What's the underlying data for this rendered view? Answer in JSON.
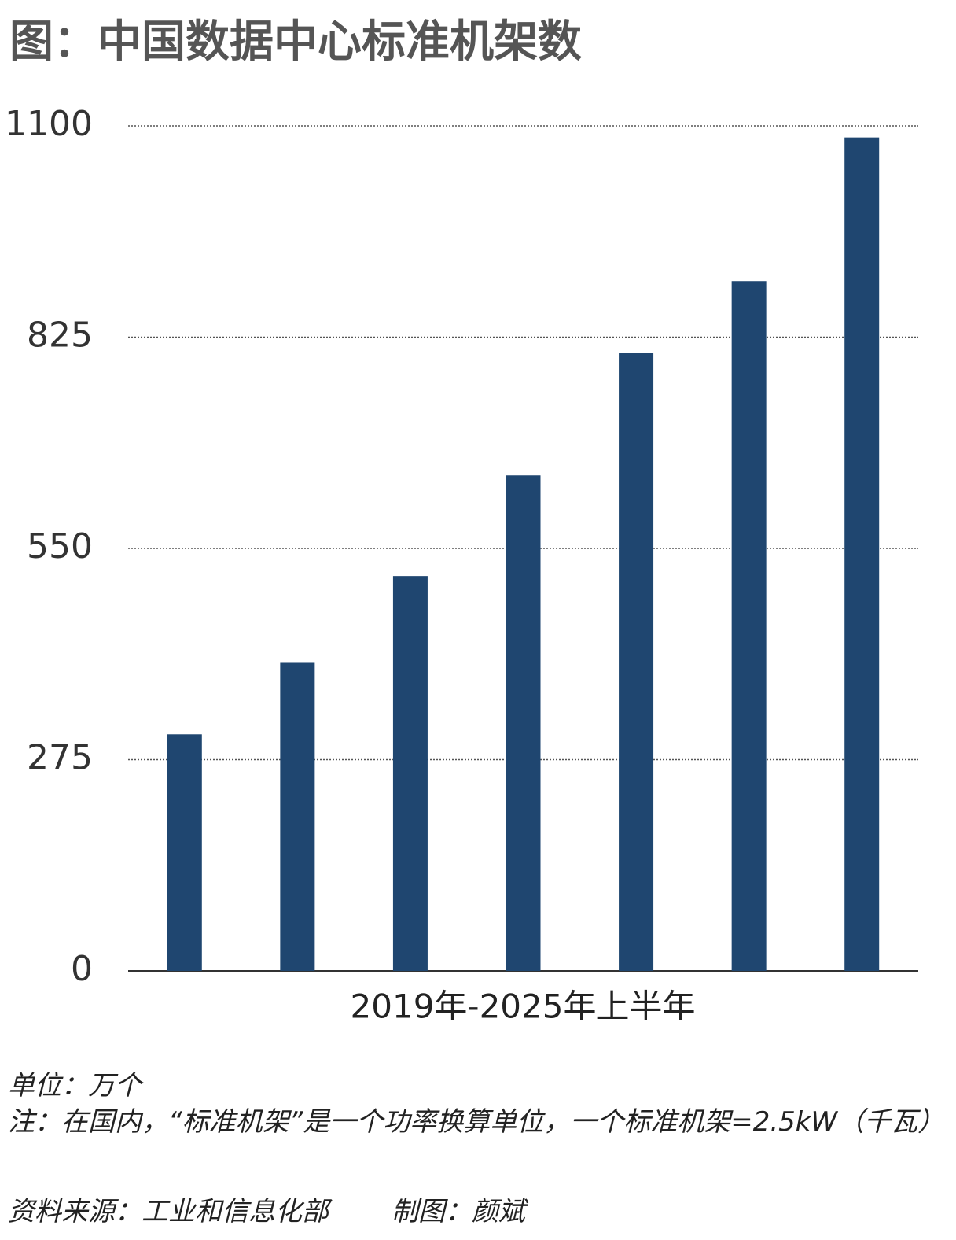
{
  "chart_data": {
    "type": "bar",
    "title": "图：中国数据中心标准机架数",
    "xlabel": "2019年-2025年上半年",
    "categories": [
      null,
      null,
      null,
      null,
      null,
      null,
      null
    ],
    "values": [
      308,
      401,
      514,
      645,
      804,
      898,
      1085
    ],
    "color": "#1f4670",
    "ylim": [
      0,
      1100
    ],
    "yticks": [
      0,
      275,
      550,
      825,
      1100
    ],
    "grid": true,
    "unit": "单位：万个",
    "note": "注：在国内，“标准机架”是一个功率换算单位，一个标准机架=2.5kW（千瓦）",
    "source": "资料来源：工业和信息化部",
    "credit": "制图：颜斌"
  }
}
